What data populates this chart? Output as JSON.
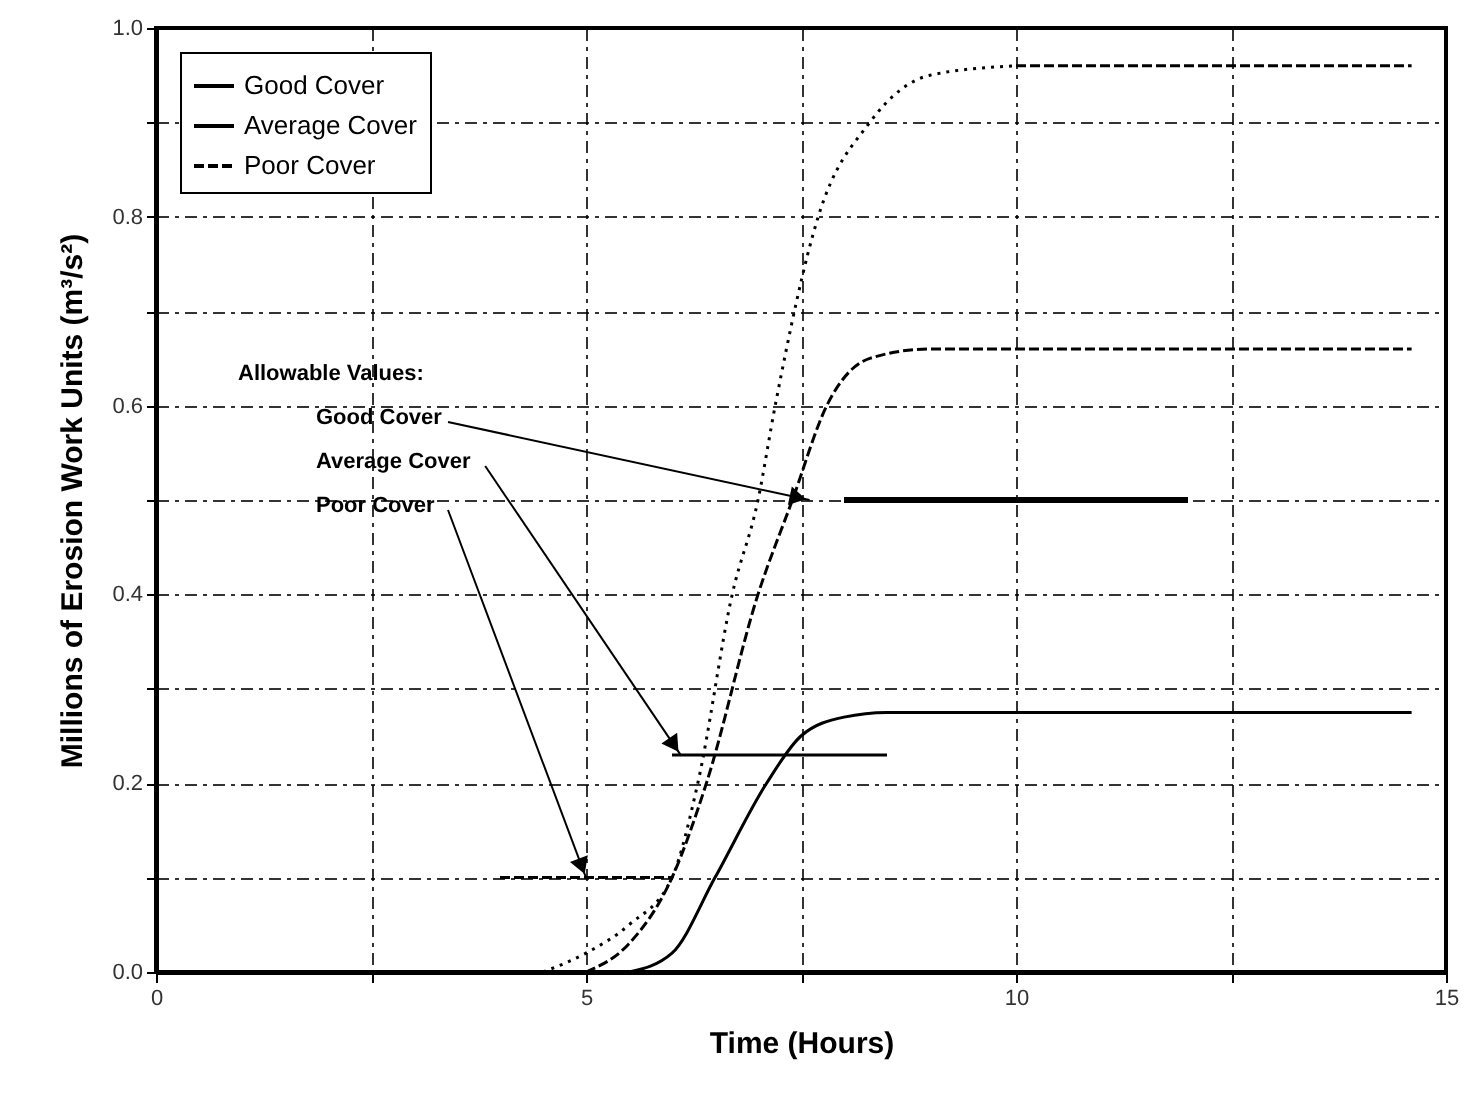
{
  "chart_data": {
    "type": "line",
    "xlabel": "Time (Hours)",
    "ylabel": "Millions of Erosion Work Units (m³/s²)",
    "xlim": [
      0,
      15
    ],
    "ylim": [
      0,
      1
    ],
    "xticks": [
      0,
      {
        "value": 2.5,
        "label": null
      },
      5,
      {
        "value": 7.5,
        "label": null
      },
      10,
      {
        "value": 12.5,
        "label": null
      },
      15
    ],
    "yticks": [
      {
        "value": 0,
        "label": "0.0"
      },
      {
        "value": 0.1,
        "label": null
      },
      {
        "value": 0.2,
        "label": "0.2"
      },
      {
        "value": 0.3,
        "label": null
      },
      {
        "value": 0.4,
        "label": "0.4"
      },
      {
        "value": 0.5,
        "label": null
      },
      {
        "value": 0.6,
        "label": "0.6"
      },
      {
        "value": 0.7,
        "label": null
      },
      {
        "value": 0.8,
        "label": "0.8"
      },
      {
        "value": 0.9,
        "label": null
      },
      {
        "value": 1,
        "label": "1.0"
      }
    ],
    "grid": true,
    "legend": "top left",
    "series": [
      {
        "name": "Good Cover",
        "color": "#000000",
        "line_style": "solid",
        "x": [
          8,
          12
        ],
        "values": [
          0.5,
          0.5
        ]
      },
      {
        "name": "Average Cover",
        "color": "#000000",
        "line_style": "solid",
        "x": [
          5.5,
          6,
          6.5,
          7.1,
          7.5,
          8,
          8.5,
          14.6
        ],
        "values": [
          0,
          0.02,
          0.1,
          0.2,
          0.25,
          0.27,
          0.275,
          0.275
        ]
      },
      {
        "name": "Poor Cover",
        "color": "#000000",
        "line_style": "dashed",
        "x": [
          10,
          14.6
        ],
        "values": [
          0.96,
          0.96
        ]
      },
      {
        "color": "#000000",
        "line_style": "dashed",
        "x": [
          5,
          5.5,
          6,
          6.4,
          7,
          7.4,
          7.8,
          8.3,
          9,
          14.6
        ],
        "values": [
          0,
          0.03,
          0.1,
          0.2,
          0.4,
          0.5,
          0.6,
          0.65,
          0.66,
          0.66
        ]
      },
      {
        "color": "#000000",
        "line_style": "dotted",
        "x": [
          4.5,
          5,
          5.5,
          6,
          6.3,
          6.7,
          7,
          7.2,
          7.7,
          8.3,
          9,
          10
        ],
        "values": [
          0,
          0.02,
          0.05,
          0.1,
          0.2,
          0.4,
          0.5,
          0.6,
          0.8,
          0.9,
          0.95,
          0.96
        ]
      },
      {
        "color": "#000000",
        "line_style": "solid",
        "x": [
          6,
          8.5
        ],
        "values": [
          0.23,
          0.23
        ]
      },
      {
        "color": "#000000",
        "line_style": "dashed",
        "x": [
          4,
          6
        ],
        "values": [
          0.1,
          0.1
        ]
      }
    ],
    "annotations": [
      "Allowable Values:",
      {
        "text": "Good Cover",
        "x": 7.6,
        "y": 0.5
      },
      {
        "text": "Average Cover",
        "x": 6.1,
        "y": 0.23
      },
      {
        "text": "Poor Cover",
        "x": 5,
        "y": 0.1
      }
    ]
  }
}
